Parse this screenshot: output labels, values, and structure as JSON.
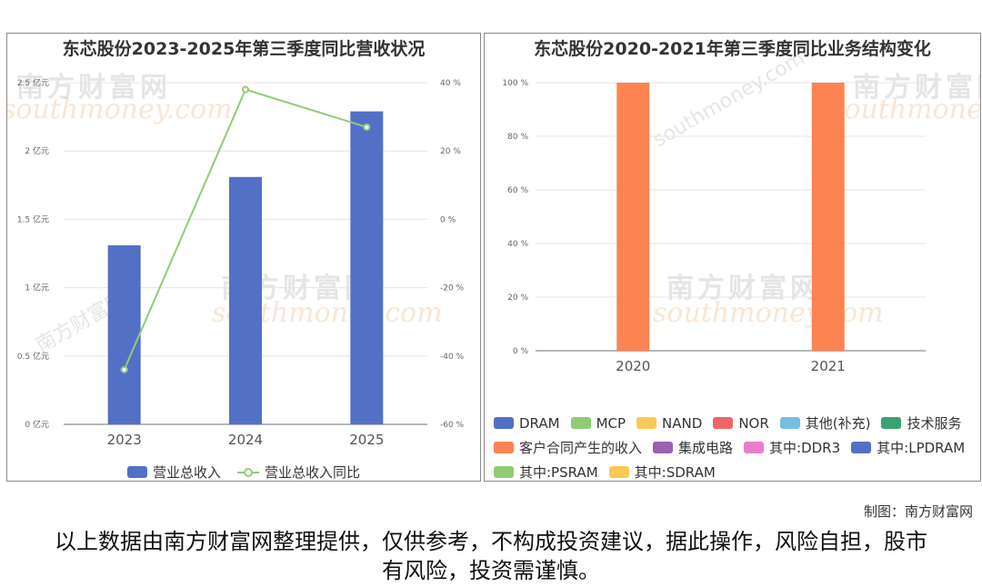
{
  "chart_data": [
    {
      "type": "bar",
      "title": "东芯股份2023-2025年第三季度同比营收状况",
      "categories": [
        "2023",
        "2024",
        "2025"
      ],
      "series": [
        {
          "name": "营业总收入",
          "type": "bar",
          "axis": "left",
          "values": [
            1.31,
            1.81,
            2.29
          ],
          "color": "#5470c6"
        },
        {
          "name": "营业总收入同比",
          "type": "line",
          "axis": "right",
          "values": [
            -44,
            38,
            27
          ],
          "color": "#91cc75"
        }
      ],
      "y_left": {
        "ticks": [
          "0 亿元",
          "0.5 亿元",
          "1 亿元",
          "1.5 亿元",
          "2 亿元",
          "2.5 亿元"
        ],
        "ylim": [
          0,
          2.5
        ]
      },
      "y_right": {
        "ticks": [
          "-60 %",
          "-40 %",
          "-20 %",
          "0 %",
          "20 %",
          "40 %"
        ],
        "ylim": [
          -60,
          40
        ]
      },
      "grid": true,
      "legend_position": "bottom"
    },
    {
      "type": "bar",
      "title": "东芯股份2020-2021年第三季度同比业务结构变化",
      "categories": [
        "2020",
        "2021"
      ],
      "series": [
        {
          "name": "客户合同产生的收入",
          "values": [
            100,
            100
          ],
          "color": "#fc8452"
        }
      ],
      "y": {
        "ticks": [
          "0 %",
          "20 %",
          "40 %",
          "60 %",
          "80 %",
          "100 %"
        ],
        "ylim": [
          0,
          100
        ]
      },
      "grid": true,
      "legend": [
        {
          "name": "DRAM",
          "color": "#5470c6"
        },
        {
          "name": "MCP",
          "color": "#91cc75"
        },
        {
          "name": "NAND",
          "color": "#fac858"
        },
        {
          "name": "NOR",
          "color": "#ee6666"
        },
        {
          "name": "其他(补充)",
          "color": "#73c0de"
        },
        {
          "name": "技术服务",
          "color": "#3ba272"
        },
        {
          "name": "客户合同产生的收入",
          "color": "#fc8452"
        },
        {
          "name": "集成电路",
          "color": "#9a60b4"
        },
        {
          "name": "其中:DDR3",
          "color": "#ea7ccc"
        },
        {
          "name": "其中:LPDRAM",
          "color": "#5470c6"
        },
        {
          "name": "其中:PSRAM",
          "color": "#91cc75"
        },
        {
          "name": "其中:SDRAM",
          "color": "#fac858"
        }
      ],
      "legend_position": "bottom"
    }
  ],
  "watermark": {
    "cn": "南方财富网",
    "en": "southmoney.com"
  },
  "footer": {
    "credit": "制图：南方财富网",
    "disclaimer": "以上数据由南方财富网整理提供，仅供参考，不构成投资建议，据此操作，风险自担，股市有风险，投资需谨慎。"
  }
}
